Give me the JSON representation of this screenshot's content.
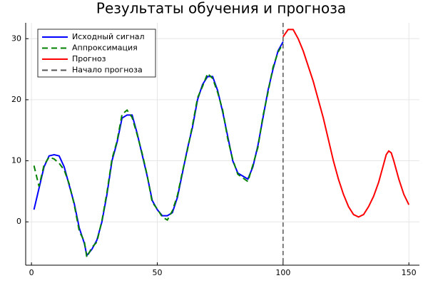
{
  "chart_data": {
    "type": "line",
    "title": "Результаты обучения и прогноза",
    "xlim": [
      -2.3,
      154.2
    ],
    "ylim": [
      -7.1,
      32.6
    ],
    "xticks": [
      0,
      50,
      100,
      150
    ],
    "yticks": [
      0,
      10,
      20,
      30
    ],
    "grid": true,
    "legend": "top-left",
    "series": [
      {
        "name": "Исходный сигнал",
        "color": "#0000ff",
        "style": "solid",
        "x": [
          1,
          3,
          5,
          7,
          9,
          11,
          13,
          15,
          17,
          19,
          21,
          22,
          24,
          26,
          28,
          30,
          32,
          34,
          36,
          38,
          40,
          42,
          44,
          46,
          48,
          50,
          52,
          54,
          56,
          58,
          60,
          62,
          64,
          66,
          68,
          70,
          72,
          74,
          76,
          78,
          80,
          82,
          84,
          86,
          88,
          90,
          92,
          94,
          96,
          98,
          100
        ],
        "values": [
          2,
          5.5,
          9,
          10.8,
          11,
          10.8,
          9,
          6,
          3,
          -1,
          -3.5,
          -5.5,
          -4.5,
          -3,
          0,
          4.5,
          10,
          13,
          17,
          17.5,
          17.5,
          14.5,
          11,
          7.5,
          3.5,
          2,
          1,
          1,
          1.5,
          4,
          8,
          12,
          15.5,
          20,
          22.5,
          23.8,
          23.8,
          21.5,
          18,
          14,
          10,
          8,
          7.5,
          7,
          9,
          12.5,
          17,
          21.5,
          25,
          28,
          29.5
        ]
      },
      {
        "name": "Аппроксимация",
        "color": "#008000",
        "style": "dashed",
        "x": [
          1,
          3,
          5,
          7,
          9,
          11,
          13,
          15,
          17,
          19,
          21,
          22,
          24,
          26,
          28,
          30,
          32,
          34,
          36,
          38,
          40,
          42,
          44,
          46,
          48,
          50,
          52,
          54,
          56,
          58,
          60,
          62,
          64,
          66,
          68,
          70,
          72,
          74,
          76,
          78,
          80,
          82,
          84,
          86,
          88,
          90,
          92,
          94,
          96,
          98,
          100
        ],
        "values": [
          9.2,
          5.8,
          9.3,
          10.6,
          10.3,
          9.6,
          8.5,
          6.2,
          2.8,
          -1.5,
          -3.2,
          -5.8,
          -4.2,
          -3.3,
          0.2,
          4.8,
          10.3,
          13.2,
          17.6,
          18.3,
          17.1,
          14.3,
          11.2,
          7.6,
          3.2,
          2.1,
          0.8,
          0.3,
          1.8,
          4.3,
          8.2,
          11.8,
          15.8,
          20.3,
          22.2,
          24.3,
          23.5,
          21.2,
          18.3,
          13.6,
          10.2,
          7.8,
          7.2,
          6.6,
          9.3,
          12.2,
          17.3,
          21.2,
          25.3,
          27.8,
          29.2
        ]
      },
      {
        "name": "Прогноз",
        "color": "#ff0000",
        "style": "solid",
        "x": [
          100,
          102,
          104,
          106,
          108,
          110,
          112,
          114,
          116,
          118,
          120,
          122,
          124,
          126,
          128,
          130,
          132,
          134,
          136,
          138,
          140,
          141,
          142,
          143,
          144,
          146,
          148,
          150
        ],
        "values": [
          30.3,
          31.5,
          31.5,
          30,
          28,
          25.5,
          23,
          20,
          17,
          13.5,
          10,
          7,
          4.5,
          2.5,
          1.2,
          0.8,
          1.2,
          2.5,
          4.2,
          6.5,
          9.5,
          11,
          11.6,
          11.3,
          10,
          7,
          4.5,
          2.8
        ]
      }
    ],
    "vline": {
      "name": "Начало прогноза",
      "x": 100,
      "color": "#555555",
      "style": "dashed"
    }
  }
}
